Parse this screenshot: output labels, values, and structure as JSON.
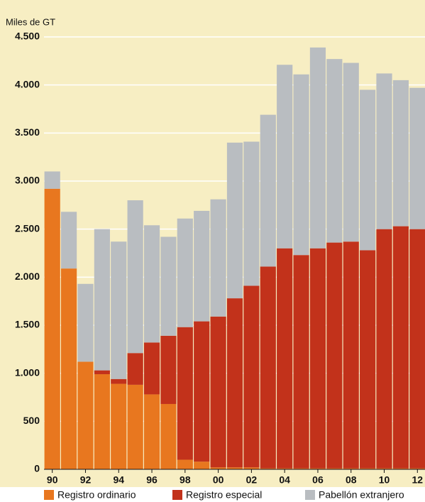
{
  "chart_data": {
    "type": "stacked_bar",
    "title": "Miles de GT",
    "categories": [
      "90",
      null,
      "92",
      null,
      "94",
      null,
      "96",
      null,
      "98",
      null,
      "00",
      null,
      "02",
      null,
      "04",
      null,
      "06",
      null,
      "08",
      null,
      "10",
      null,
      "12"
    ],
    "series": [
      {
        "name": "Registro ordinario",
        "color": "#e8771f",
        "values": [
          2920,
          2090,
          1120,
          990,
          890,
          880,
          780,
          680,
          100,
          80,
          20,
          20,
          20,
          10,
          10,
          10,
          10,
          10,
          10,
          10,
          10,
          10,
          10
        ]
      },
      {
        "name": "Registro especial",
        "color": "#c2321b",
        "values": [
          0,
          0,
          0,
          40,
          50,
          330,
          540,
          710,
          1380,
          1460,
          1570,
          1760,
          1890,
          2100,
          2290,
          2220,
          2290,
          2350,
          2360,
          2270,
          2490,
          2520,
          2490
        ]
      },
      {
        "name": "Pabellón extranjero",
        "color": "#b9bdc1",
        "values": [
          180,
          590,
          810,
          1470,
          1430,
          1590,
          1220,
          1030,
          1130,
          1150,
          1220,
          1620,
          1500,
          1580,
          1910,
          1880,
          2090,
          1910,
          1860,
          1670,
          1620,
          1520,
          1470
        ]
      }
    ],
    "ylim": [
      0,
      4500
    ],
    "yticks": [
      0,
      500,
      {
        "value": 1000,
        "label": "1.000"
      },
      {
        "value": 1500,
        "label": "1.500"
      },
      {
        "value": 2000,
        "label": "2.000"
      },
      {
        "value": 2500,
        "label": "2.500"
      },
      {
        "value": 3000,
        "label": "3.000"
      },
      {
        "value": 3500,
        "label": "3.500"
      },
      {
        "value": 4000,
        "label": "4.000"
      },
      {
        "value": 4500,
        "label": "4.500"
      }
    ],
    "grid": true,
    "legend": "bottom"
  }
}
